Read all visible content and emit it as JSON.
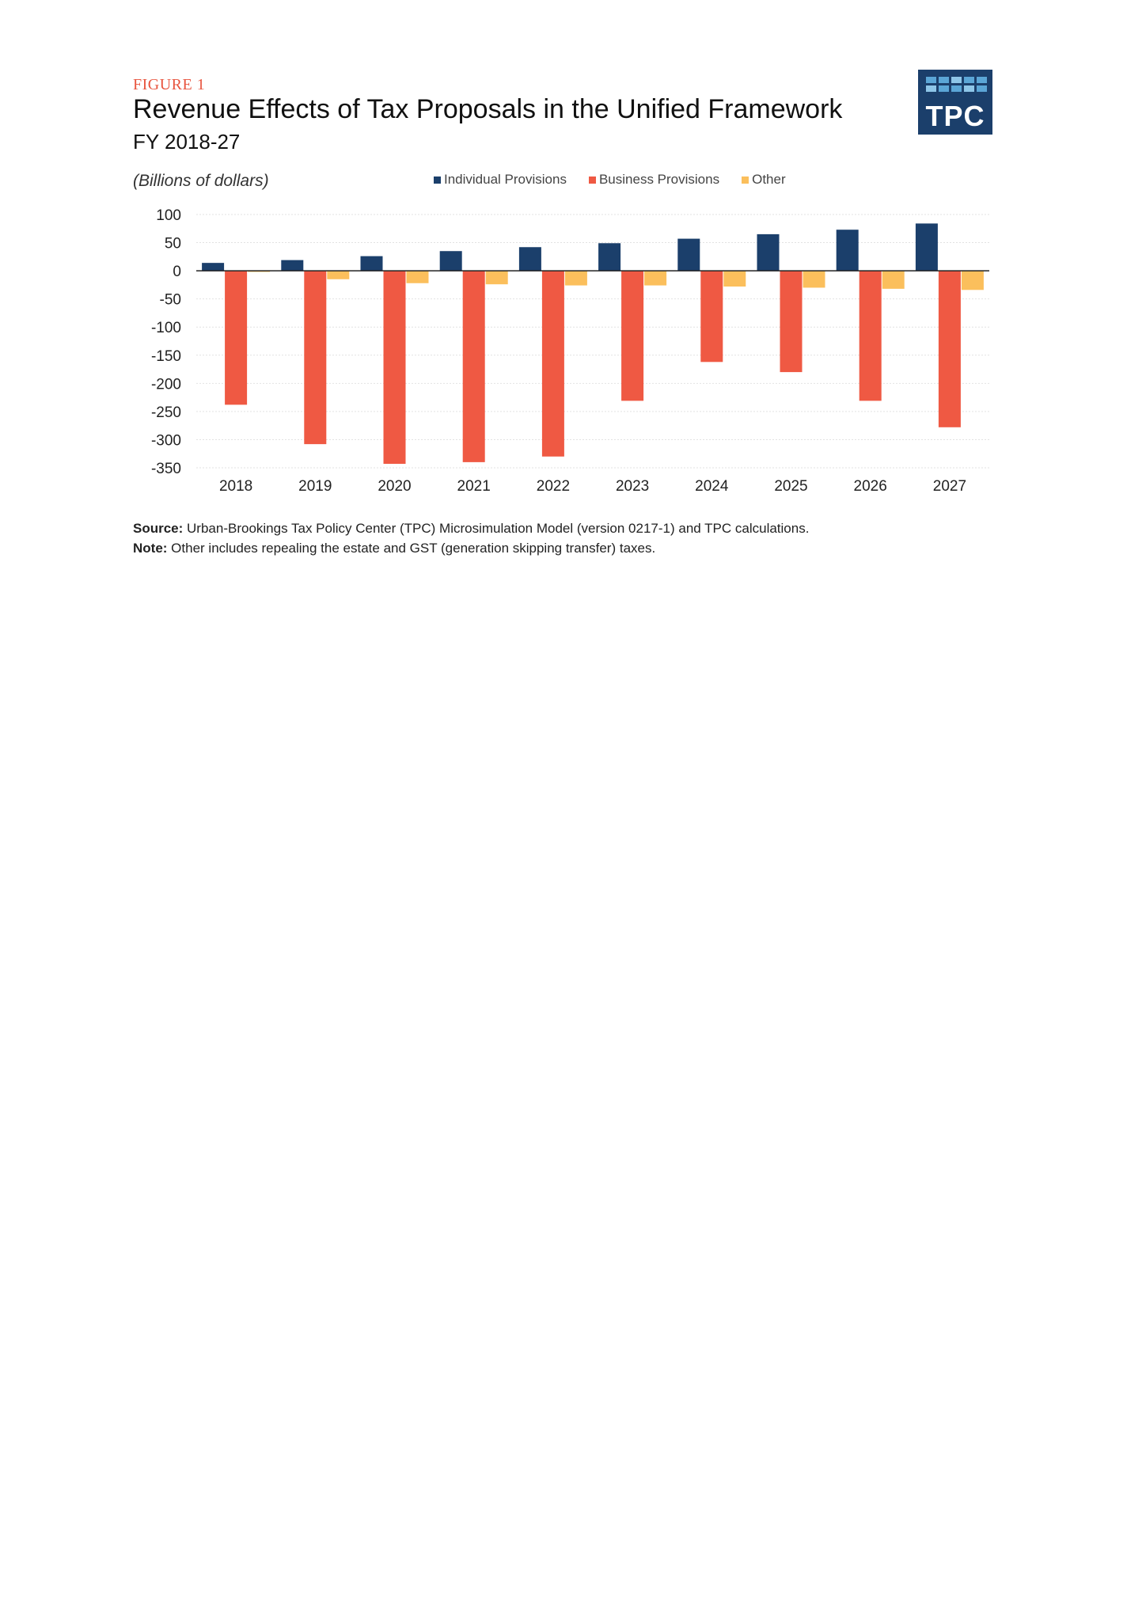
{
  "figure": {
    "label": "FIGURE 1",
    "title": "Revenue Effects of Tax Proposals in the Unified Framework",
    "subtitle": "FY 2018-27",
    "units": "(Billions of dollars)",
    "logo_text": "TPC"
  },
  "colors": {
    "individual": "#1b3f6b",
    "business": "#ef5943",
    "other": "#fbbf5c",
    "grid": "#e2e2e2",
    "axis": "#222222"
  },
  "chart_data": {
    "type": "bar",
    "categories": [
      "2018",
      "2019",
      "2020",
      "2021",
      "2022",
      "2023",
      "2024",
      "2025",
      "2026",
      "2027"
    ],
    "series": [
      {
        "name": "Individual Provisions",
        "color_key": "individual",
        "values": [
          14,
          19,
          26,
          35,
          42,
          49,
          57,
          65,
          73,
          84
        ]
      },
      {
        "name": "Business Provisions",
        "color_key": "business",
        "values": [
          -238,
          -308,
          -343,
          -340,
          -330,
          -231,
          -162,
          -180,
          -231,
          -278
        ]
      },
      {
        "name": "Other",
        "color_key": "other",
        "values": [
          -2,
          -15,
          -22,
          -24,
          -26,
          -26,
          -28,
          -30,
          -32,
          -34
        ]
      }
    ],
    "yticks": [
      100,
      50,
      0,
      -50,
      -100,
      -150,
      -200,
      -250,
      -300,
      -350
    ],
    "ylim": [
      -350,
      100
    ],
    "grid": true,
    "legend_position": "top"
  },
  "notes": {
    "source_label": "Source:",
    "source_text": " Urban-Brookings Tax Policy Center (TPC) Microsimulation Model (version 0217-1) and TPC calculations.",
    "note_label": "Note:",
    "note_text": " Other includes repealing the estate and GST (generation skipping transfer) taxes."
  }
}
